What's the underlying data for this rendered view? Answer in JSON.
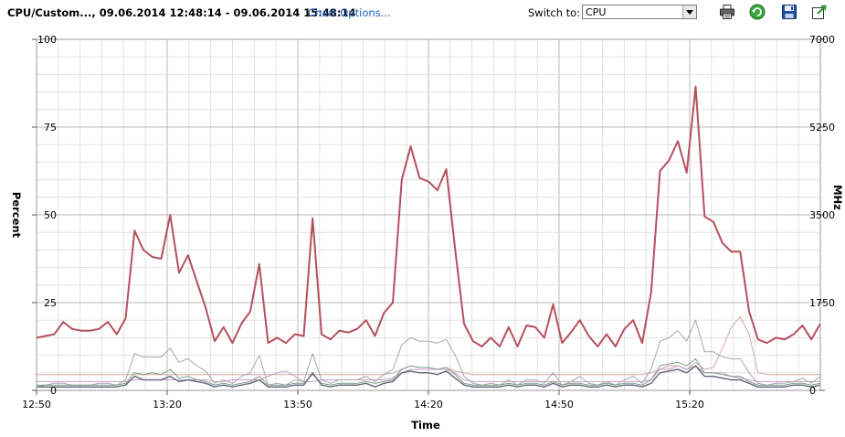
{
  "header": {
    "title": "CPU/Custom..., 09.06.2014 12:48:14 - 09.06.2014 15:48:14",
    "chart_options_label": "Chart Options...",
    "switch_label": "Switch to:",
    "switch_value": "CPU",
    "icons": [
      "printer-icon",
      "refresh-icon",
      "save-icon",
      "export-icon"
    ]
  },
  "chart_data": {
    "type": "line",
    "xlabel": "Time",
    "ylabel": "Percent",
    "y2label": "MHz",
    "xlim": [
      0,
      180
    ],
    "ylim": [
      0,
      100
    ],
    "y2lim": [
      0,
      7000
    ],
    "x_ticks": [
      {
        "v": 0,
        "label": "12:50"
      },
      {
        "v": 30,
        "label": "13:20"
      },
      {
        "v": 60,
        "label": "13:50"
      },
      {
        "v": 90,
        "label": "14:20"
      },
      {
        "v": 120,
        "label": "14:50"
      },
      {
        "v": 150,
        "label": "15:20"
      }
    ],
    "y_ticks": [
      {
        "v": 0,
        "label": "0"
      },
      {
        "v": 25,
        "label": "25"
      },
      {
        "v": 50,
        "label": "50"
      },
      {
        "v": 75,
        "label": "75"
      },
      {
        "v": 100,
        "label": "100"
      }
    ],
    "y2_ticks": [
      {
        "v": 0,
        "label": "0"
      },
      {
        "v": 1750,
        "label": "1750"
      },
      {
        "v": 3500,
        "label": "3500"
      },
      {
        "v": 5250,
        "label": "5250"
      },
      {
        "v": 7000,
        "label": "7000"
      }
    ],
    "grid": true,
    "series": [
      {
        "color": "#b5505e",
        "width": 2,
        "values": [
          15,
          15.5,
          16,
          19.5,
          17.5,
          17,
          17,
          17.5,
          19.5,
          16,
          20.5,
          45.5,
          40,
          38,
          37.5,
          50,
          33.5,
          38.5,
          31,
          23.5,
          14,
          18,
          13.5,
          19,
          22.5,
          36,
          13.5,
          15,
          13.5,
          16,
          15.5,
          49,
          16,
          14.5,
          17,
          16.5,
          17.5,
          20,
          15.5,
          22,
          25,
          60,
          69.5,
          60.5,
          59.5,
          57,
          63,
          40,
          19,
          14,
          12.5,
          15,
          12.5,
          18,
          12.5,
          18.5,
          18,
          15,
          24.5,
          13.5,
          16.5,
          20,
          15.5,
          12.5,
          16,
          12.5,
          17.5,
          20,
          13.5,
          28,
          62.5,
          65.5,
          71,
          62,
          86.5,
          49.5,
          48,
          42,
          39.5,
          39.5,
          22.5,
          14.5,
          13.5,
          15,
          14.5,
          16,
          18.5,
          14.5,
          19
        ]
      },
      {
        "color": "#a8a8a8",
        "width": 1,
        "values": [
          1,
          1.5,
          2,
          2,
          1.5,
          1.5,
          1.5,
          2,
          2,
          1.5,
          3,
          10.5,
          9.5,
          9.5,
          9.5,
          12,
          8,
          9,
          7,
          5.5,
          2,
          3,
          2,
          4,
          5,
          10,
          1.5,
          2,
          1.5,
          3,
          2.5,
          10.5,
          3,
          2,
          3,
          3,
          3,
          4,
          2.5,
          4.5,
          6,
          13,
          15,
          14,
          14,
          13.5,
          14.5,
          10,
          4,
          2,
          1.5,
          2,
          1.5,
          3,
          1.5,
          3,
          3,
          2,
          5,
          1.5,
          2.5,
          4,
          2,
          1.5,
          2.5,
          1.5,
          3,
          4,
          2,
          6,
          14,
          15,
          17,
          14,
          20,
          11,
          11,
          9.5,
          9,
          9,
          5,
          2,
          1.5,
          2,
          2,
          2.5,
          3.5,
          2,
          4
        ]
      },
      {
        "color": "#d4a8a8",
        "width": 1,
        "values": [
          4.5,
          4.5,
          4.5,
          4.5,
          4.5,
          4.5,
          4.5,
          4.5,
          4.5,
          4.5,
          4.5,
          4.5,
          4.5,
          4.5,
          4.5,
          4.5,
          4.5,
          4.5,
          4.5,
          4.5,
          4.5,
          4.5,
          4.5,
          4.5,
          4.5,
          4.5,
          4.5,
          4.5,
          4.5,
          4.5,
          4.5,
          4.5,
          4.5,
          4.5,
          4.5,
          4.5,
          4.5,
          4.5,
          4.5,
          4.5,
          5,
          6,
          7,
          6.5,
          6.5,
          6,
          6.5,
          5.5,
          5,
          4.5,
          4.5,
          4.5,
          4.5,
          4.5,
          4.5,
          4.5,
          4.5,
          4.5,
          4.5,
          4.5,
          4.5,
          4.5,
          4.5,
          4.5,
          4.5,
          4.5,
          4.5,
          4.5,
          4.5,
          5,
          6,
          7,
          7,
          6,
          8,
          6,
          6.5,
          12,
          18,
          21,
          16,
          5,
          4.5,
          4.5,
          4.5,
          4.5,
          4.5,
          4.5,
          4.5
        ]
      },
      {
        "color": "#c9a0c9",
        "width": 1,
        "values": [
          2.5,
          2.5,
          2.5,
          2.5,
          2.5,
          2.5,
          2.5,
          2.5,
          2.5,
          2.5,
          2.5,
          3,
          3,
          3,
          3,
          3,
          3,
          3,
          3,
          3,
          2.5,
          2.5,
          3,
          3,
          3,
          3,
          4,
          5,
          5.5,
          4,
          2.5,
          2.5,
          3,
          3,
          3,
          3,
          3,
          3,
          3,
          3,
          3.5,
          5,
          6,
          6,
          6,
          6,
          6,
          5,
          3,
          2.5,
          2.5,
          2.5,
          2.5,
          2.5,
          2.5,
          2.5,
          2.5,
          2.5,
          2.5,
          2.5,
          2.5,
          2.5,
          2.5,
          2.5,
          2.5,
          2.5,
          2.5,
          2.5,
          2.5,
          3,
          6,
          6,
          7,
          6,
          7,
          5,
          5,
          5,
          4,
          3.5,
          3,
          2.5,
          2.5,
          2.5,
          2.5,
          2.5,
          2.5,
          2.5,
          2.5
        ]
      },
      {
        "color": "#6a6f7c",
        "width": 1.5,
        "values": [
          1,
          1,
          1,
          1,
          1,
          1,
          1,
          1,
          1,
          1,
          1.5,
          4,
          3,
          3,
          3,
          4,
          2.5,
          3,
          2.5,
          2,
          1,
          1.5,
          1,
          1.5,
          2,
          3,
          1,
          1,
          1,
          1.5,
          1.5,
          5,
          1.5,
          1,
          1.5,
          1.5,
          1.5,
          2,
          1,
          2,
          2.5,
          5,
          5.5,
          5,
          5,
          4.5,
          5.5,
          3.5,
          1.5,
          1,
          1,
          1,
          1,
          1.5,
          1,
          1.5,
          1.5,
          1,
          2,
          1,
          1.5,
          1.5,
          1,
          1,
          1.5,
          1,
          1.5,
          1.5,
          1,
          2,
          5,
          5.5,
          6,
          5,
          7,
          4,
          4,
          3.5,
          3,
          3,
          2,
          1,
          1,
          1,
          1,
          1.5,
          1.5,
          1,
          1.5
        ]
      },
      {
        "color": "#7f9e8a",
        "width": 1,
        "values": [
          1.5,
          1.5,
          1.5,
          1.5,
          1.5,
          1.5,
          1.5,
          1.5,
          1.5,
          1.5,
          2,
          5,
          4.5,
          5,
          4.5,
          6,
          3.5,
          4,
          3,
          2.5,
          1.5,
          2,
          1.5,
          2,
          2.5,
          4,
          1.5,
          1.5,
          1.5,
          2,
          2,
          4.5,
          2,
          1.5,
          2,
          2,
          2,
          2.5,
          2,
          2.5,
          3,
          6,
          7,
          6.5,
          6.5,
          6,
          6.5,
          4.5,
          2,
          1.5,
          1.5,
          1.5,
          1.5,
          2,
          1.5,
          2,
          2,
          1.5,
          2.5,
          1.5,
          2,
          2,
          1.5,
          1.5,
          2,
          1.5,
          2,
          2,
          1.5,
          3,
          7,
          7.5,
          8,
          7,
          9,
          5,
          5,
          4.5,
          4,
          4,
          2.5,
          1.5,
          1.5,
          1.5,
          1.5,
          2,
          2,
          1.5,
          2
        ]
      }
    ]
  }
}
